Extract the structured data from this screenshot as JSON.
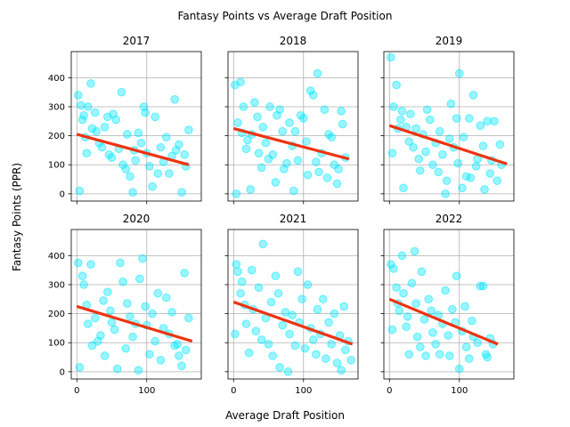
{
  "figure": {
    "title": "Fantasy Points vs Average Draft Position",
    "xlabel": "Average Draft Position",
    "ylabel": "Fantasy Points (PPR)",
    "point_color": "#00e5ff",
    "trend_color": "#ee3311"
  },
  "chart_data": [
    {
      "type": "scatter",
      "title": "2017",
      "xlim": [
        -8,
        178
      ],
      "ylim": [
        -25,
        490
      ],
      "xticks": [
        0,
        100
      ],
      "yticks": [
        0,
        100,
        200,
        300,
        400
      ],
      "grid": true,
      "points": [
        [
          2,
          340
        ],
        [
          4,
          10
        ],
        [
          6,
          305
        ],
        [
          8,
          255
        ],
        [
          10,
          270
        ],
        [
          12,
          195
        ],
        [
          14,
          140
        ],
        [
          16,
          300
        ],
        [
          20,
          380
        ],
        [
          22,
          225
        ],
        [
          26,
          280
        ],
        [
          28,
          215
        ],
        [
          32,
          175
        ],
        [
          36,
          160
        ],
        [
          40,
          230
        ],
        [
          44,
          265
        ],
        [
          46,
          135
        ],
        [
          50,
          125
        ],
        [
          52,
          275
        ],
        [
          56,
          255
        ],
        [
          60,
          155
        ],
        [
          64,
          350
        ],
        [
          66,
          100
        ],
        [
          70,
          85
        ],
        [
          72,
          205
        ],
        [
          76,
          60
        ],
        [
          80,
          5
        ],
        [
          82,
          150
        ],
        [
          84,
          115
        ],
        [
          88,
          210
        ],
        [
          92,
          175
        ],
        [
          96,
          300
        ],
        [
          98,
          280
        ],
        [
          100,
          140
        ],
        [
          104,
          95
        ],
        [
          108,
          25
        ],
        [
          112,
          265
        ],
        [
          116,
          70
        ],
        [
          120,
          160
        ],
        [
          124,
          110
        ],
        [
          128,
          195
        ],
        [
          132,
          70
        ],
        [
          136,
          130
        ],
        [
          140,
          325
        ],
        [
          142,
          150
        ],
        [
          146,
          170
        ],
        [
          150,
          5
        ],
        [
          154,
          135
        ],
        [
          156,
          95
        ],
        [
          160,
          220
        ]
      ],
      "trend": {
        "x": [
          0,
          160
        ],
        "y": [
          205,
          100
        ]
      }
    },
    {
      "type": "scatter",
      "title": "2018",
      "xlim": [
        -8,
        178
      ],
      "ylim": [
        -25,
        490
      ],
      "xticks": [
        0,
        100
      ],
      "yticks": [
        0,
        100,
        200,
        300,
        400
      ],
      "grid": true,
      "points": [
        [
          2,
          375
        ],
        [
          4,
          0
        ],
        [
          6,
          245
        ],
        [
          10,
          385
        ],
        [
          12,
          210
        ],
        [
          14,
          300
        ],
        [
          18,
          155
        ],
        [
          20,
          185
        ],
        [
          24,
          15
        ],
        [
          26,
          205
        ],
        [
          30,
          315
        ],
        [
          34,
          265
        ],
        [
          36,
          140
        ],
        [
          40,
          90
        ],
        [
          42,
          230
        ],
        [
          46,
          175
        ],
        [
          50,
          120
        ],
        [
          52,
          300
        ],
        [
          56,
          135
        ],
        [
          60,
          40
        ],
        [
          62,
          270
        ],
        [
          66,
          290
        ],
        [
          70,
          215
        ],
        [
          72,
          85
        ],
        [
          76,
          105
        ],
        [
          80,
          245
        ],
        [
          84,
          165
        ],
        [
          86,
          10
        ],
        [
          88,
          215
        ],
        [
          92,
          115
        ],
        [
          96,
          270
        ],
        [
          100,
          260
        ],
        [
          104,
          180
        ],
        [
          106,
          65
        ],
        [
          110,
          355
        ],
        [
          114,
          340
        ],
        [
          118,
          110
        ],
        [
          120,
          415
        ],
        [
          122,
          75
        ],
        [
          126,
          140
        ],
        [
          130,
          290
        ],
        [
          134,
          55
        ],
        [
          136,
          205
        ],
        [
          140,
          195
        ],
        [
          144,
          100
        ],
        [
          148,
          35
        ],
        [
          150,
          85
        ],
        [
          154,
          285
        ],
        [
          156,
          240
        ],
        [
          160,
          125
        ]
      ],
      "trend": {
        "x": [
          0,
          165
        ],
        "y": [
          225,
          120
        ]
      }
    },
    {
      "type": "scatter",
      "title": "2019",
      "xlim": [
        -8,
        178
      ],
      "ylim": [
        -25,
        490
      ],
      "xticks": [
        0,
        100
      ],
      "yticks": [
        0,
        100,
        200,
        300,
        400
      ],
      "grid": true,
      "points": [
        [
          2,
          470
        ],
        [
          4,
          140
        ],
        [
          6,
          300
        ],
        [
          10,
          375
        ],
        [
          12,
          225
        ],
        [
          16,
          255
        ],
        [
          18,
          285
        ],
        [
          20,
          20
        ],
        [
          24,
          230
        ],
        [
          28,
          180
        ],
        [
          30,
          275
        ],
        [
          34,
          160
        ],
        [
          38,
          225
        ],
        [
          42,
          120
        ],
        [
          44,
          80
        ],
        [
          48,
          205
        ],
        [
          52,
          145
        ],
        [
          54,
          290
        ],
        [
          58,
          255
        ],
        [
          62,
          100
        ],
        [
          66,
          175
        ],
        [
          70,
          75
        ],
        [
          72,
          215
        ],
        [
          76,
          135
        ],
        [
          80,
          0
        ],
        [
          82,
          45
        ],
        [
          86,
          190
        ],
        [
          88,
          310
        ],
        [
          92,
          160
        ],
        [
          96,
          260
        ],
        [
          98,
          105
        ],
        [
          100,
          415
        ],
        [
          104,
          20
        ],
        [
          106,
          195
        ],
        [
          110,
          60
        ],
        [
          114,
          260
        ],
        [
          116,
          55
        ],
        [
          120,
          340
        ],
        [
          124,
          95
        ],
        [
          126,
          120
        ],
        [
          130,
          235
        ],
        [
          134,
          165
        ],
        [
          136,
          15
        ],
        [
          140,
          250
        ],
        [
          144,
          70
        ],
        [
          146,
          115
        ],
        [
          150,
          250
        ],
        [
          154,
          45
        ],
        [
          158,
          170
        ],
        [
          160,
          100
        ]
      ],
      "trend": {
        "x": [
          0,
          168
        ],
        "y": [
          235,
          103
        ]
      }
    },
    {
      "type": "scatter",
      "title": "2020",
      "xlim": [
        -8,
        178
      ],
      "ylim": [
        -25,
        490
      ],
      "xticks": [
        0,
        100
      ],
      "yticks": [
        0,
        100,
        200,
        300,
        400
      ],
      "grid": true,
      "points": [
        [
          2,
          375
        ],
        [
          4,
          15
        ],
        [
          8,
          330
        ],
        [
          10,
          300
        ],
        [
          14,
          230
        ],
        [
          16,
          165
        ],
        [
          20,
          370
        ],
        [
          22,
          90
        ],
        [
          26,
          185
        ],
        [
          30,
          105
        ],
        [
          34,
          125
        ],
        [
          38,
          245
        ],
        [
          40,
          55
        ],
        [
          44,
          275
        ],
        [
          48,
          210
        ],
        [
          50,
          170
        ],
        [
          54,
          145
        ],
        [
          58,
          10
        ],
        [
          62,
          375
        ],
        [
          66,
          310
        ],
        [
          70,
          80
        ],
        [
          72,
          235
        ],
        [
          76,
          190
        ],
        [
          80,
          120
        ],
        [
          84,
          165
        ],
        [
          88,
          5
        ],
        [
          90,
          320
        ],
        [
          94,
          390
        ],
        [
          98,
          225
        ],
        [
          100,
          160
        ],
        [
          104,
          60
        ],
        [
          108,
          200
        ],
        [
          112,
          105
        ],
        [
          116,
          270
        ],
        [
          120,
          40
        ],
        [
          124,
          150
        ],
        [
          128,
          255
        ],
        [
          132,
          130
        ],
        [
          136,
          205
        ],
        [
          140,
          90
        ],
        [
          144,
          95
        ],
        [
          146,
          55
        ],
        [
          150,
          20
        ],
        [
          154,
          340
        ],
        [
          156,
          75
        ],
        [
          160,
          185
        ]
      ],
      "trend": {
        "x": [
          0,
          165
        ],
        "y": [
          225,
          105
        ]
      }
    },
    {
      "type": "scatter",
      "title": "2021",
      "xlim": [
        -8,
        178
      ],
      "ylim": [
        -25,
        490
      ],
      "xticks": [
        0,
        100
      ],
      "yticks": [
        0,
        100,
        200,
        300,
        400
      ],
      "grid": true,
      "points": [
        [
          2,
          130
        ],
        [
          4,
          370
        ],
        [
          6,
          345
        ],
        [
          10,
          270
        ],
        [
          12,
          310
        ],
        [
          16,
          230
        ],
        [
          18,
          165
        ],
        [
          22,
          65
        ],
        [
          26,
          350
        ],
        [
          28,
          215
        ],
        [
          32,
          140
        ],
        [
          36,
          290
        ],
        [
          40,
          110
        ],
        [
          42,
          440
        ],
        [
          46,
          185
        ],
        [
          50,
          95
        ],
        [
          54,
          240
        ],
        [
          56,
          55
        ],
        [
          60,
          330
        ],
        [
          64,
          270
        ],
        [
          66,
          15
        ],
        [
          70,
          160
        ],
        [
          74,
          205
        ],
        [
          78,
          0
        ],
        [
          80,
          130
        ],
        [
          84,
          195
        ],
        [
          88,
          90
        ],
        [
          92,
          345
        ],
        [
          94,
          170
        ],
        [
          98,
          250
        ],
        [
          102,
          80
        ],
        [
          106,
          300
        ],
        [
          110,
          150
        ],
        [
          114,
          110
        ],
        [
          118,
          60
        ],
        [
          120,
          215
        ],
        [
          124,
          130
        ],
        [
          128,
          250
        ],
        [
          132,
          45
        ],
        [
          136,
          170
        ],
        [
          140,
          95
        ],
        [
          144,
          200
        ],
        [
          148,
          30
        ],
        [
          152,
          125
        ],
        [
          154,
          5
        ],
        [
          158,
          225
        ],
        [
          160,
          75
        ],
        [
          164,
          105
        ],
        [
          168,
          40
        ]
      ],
      "trend": {
        "x": [
          0,
          170
        ],
        "y": [
          240,
          95
        ]
      }
    },
    {
      "type": "scatter",
      "title": "2022",
      "xlim": [
        -8,
        178
      ],
      "ylim": [
        -25,
        490
      ],
      "xticks": [
        0,
        100
      ],
      "yticks": [
        0,
        100,
        200,
        300,
        400
      ],
      "grid": true,
      "points": [
        [
          2,
          370
        ],
        [
          4,
          145
        ],
        [
          6,
          355
        ],
        [
          10,
          290
        ],
        [
          12,
          235
        ],
        [
          14,
          210
        ],
        [
          18,
          400
        ],
        [
          20,
          270
        ],
        [
          24,
          155
        ],
        [
          26,
          190
        ],
        [
          28,
          60
        ],
        [
          32,
          305
        ],
        [
          36,
          415
        ],
        [
          38,
          235
        ],
        [
          40,
          120
        ],
        [
          44,
          85
        ],
        [
          46,
          345
        ],
        [
          50,
          180
        ],
        [
          52,
          55
        ],
        [
          56,
          250
        ],
        [
          60,
          210
        ],
        [
          62,
          135
        ],
        [
          66,
          95
        ],
        [
          70,
          195
        ],
        [
          72,
          60
        ],
        [
          76,
          165
        ],
        [
          80,
          280
        ],
        [
          84,
          125
        ],
        [
          86,
          55
        ],
        [
          90,
          215
        ],
        [
          94,
          170
        ],
        [
          96,
          330
        ],
        [
          100,
          10
        ],
        [
          104,
          140
        ],
        [
          108,
          225
        ],
        [
          110,
          85
        ],
        [
          114,
          45
        ],
        [
          118,
          175
        ],
        [
          120,
          120
        ],
        [
          126,
          100
        ],
        [
          130,
          295
        ],
        [
          134,
          295
        ],
        [
          138,
          60
        ],
        [
          140,
          50
        ],
        [
          144,
          115
        ],
        [
          148,
          95
        ]
      ],
      "trend": {
        "x": [
          0,
          155
        ],
        "y": [
          250,
          95
        ]
      }
    }
  ]
}
